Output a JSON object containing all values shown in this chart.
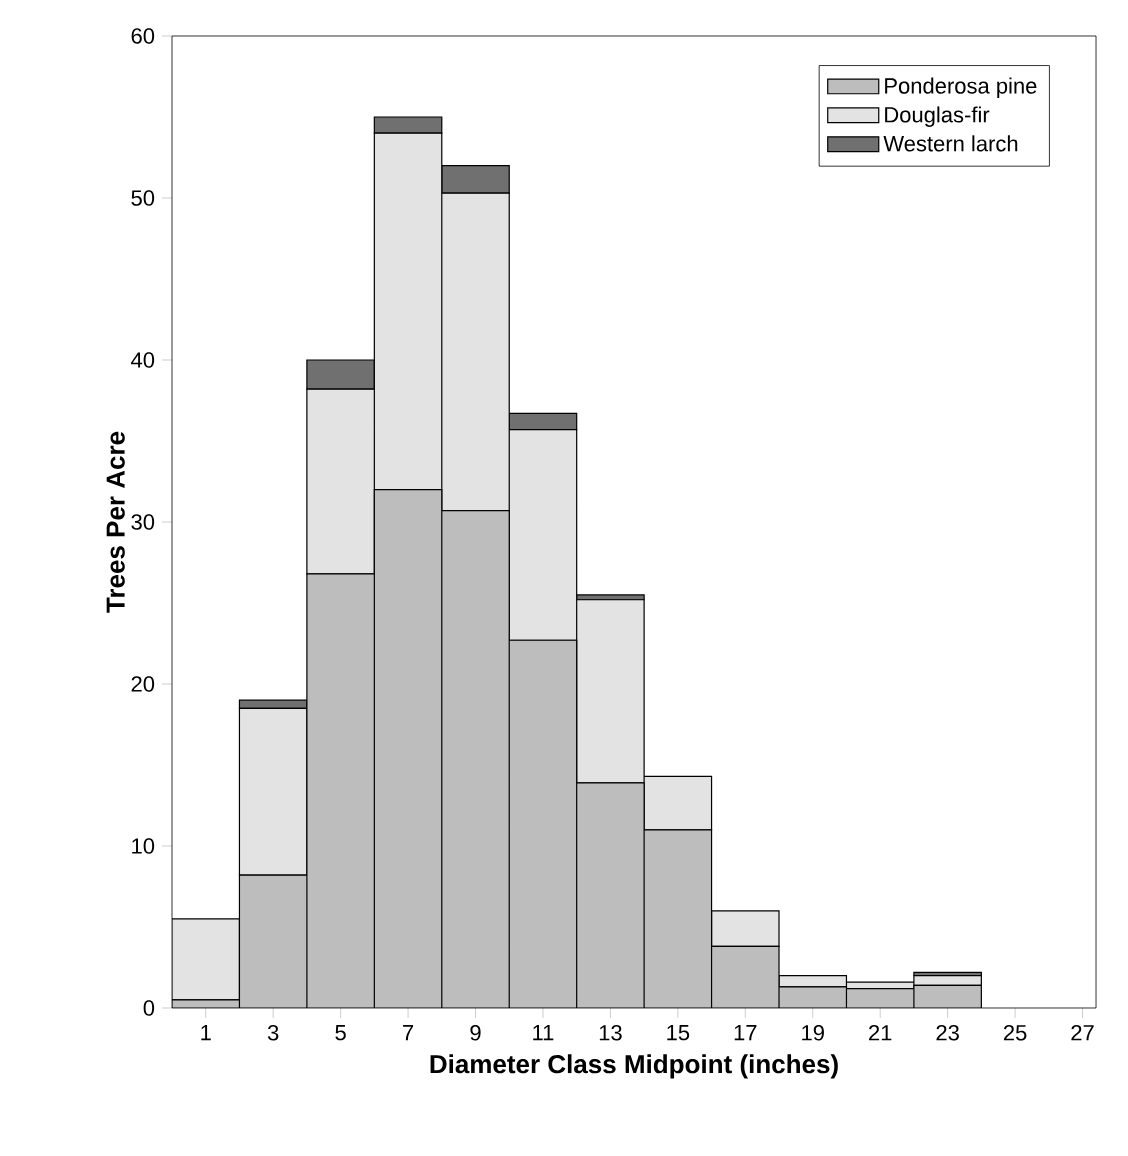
{
  "chart_data": {
    "type": "bar",
    "stacked": true,
    "categories": [
      "1",
      "3",
      "5",
      "7",
      "9",
      "11",
      "13",
      "15",
      "17",
      "19",
      "21",
      "23",
      "25",
      "27"
    ],
    "series": [
      {
        "name": "Ponderosa pine",
        "color": "#bdbdbd",
        "values": [
          0.5,
          8.2,
          26.8,
          32,
          30.7,
          22.7,
          13.9,
          11,
          3.8,
          1.3,
          1.2,
          1.4,
          0,
          0
        ]
      },
      {
        "name": "Douglas-fir",
        "color": "#e3e3e3",
        "values": [
          5,
          10.3,
          11.4,
          22,
          19.6,
          13,
          11.3,
          3.3,
          2.2,
          0.7,
          0.4,
          0.6,
          0,
          0
        ]
      },
      {
        "name": "Western larch",
        "color": "#707070",
        "values": [
          0,
          0.5,
          1.8,
          1,
          1.7,
          1,
          0.3,
          0,
          0,
          0,
          0,
          0.2,
          0,
          0
        ]
      }
    ],
    "xlabel": "Diameter Class Midpoint (inches)",
    "ylabel": "Trees Per Acre",
    "ylim": [
      0,
      60
    ],
    "yticks": [
      0,
      10,
      20,
      30,
      40,
      50,
      60
    ],
    "grid": false,
    "legend": "top right"
  }
}
